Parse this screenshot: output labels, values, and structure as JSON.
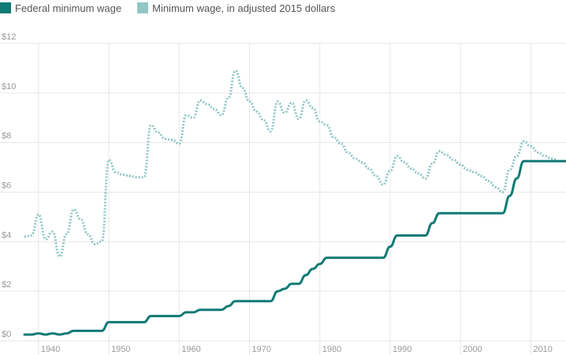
{
  "legend": [
    {
      "label": "Federal minimum wage",
      "color": "#127a75"
    },
    {
      "label": "Minimum wage, in adjusted 2015 dollars",
      "color": "#8fc7c3"
    }
  ],
  "chart_data": {
    "type": "line",
    "x_ticks": [
      "1940",
      "1950",
      "1960",
      "1970",
      "1980",
      "1990",
      "2000",
      "2010"
    ],
    "y_ticks": [
      "$0",
      "$2",
      "$4",
      "$6",
      "$8",
      "$10",
      "$12"
    ],
    "xlim": [
      1938,
      2015
    ],
    "ylim": [
      0,
      12
    ],
    "grid": true,
    "legend_position": "top-left",
    "series": [
      {
        "name": "Federal minimum wage",
        "style": "solid",
        "color": "#127a75",
        "x": [
          1938,
          1939,
          1940,
          1941,
          1942,
          1943,
          1944,
          1945,
          1946,
          1947,
          1948,
          1949,
          1950,
          1951,
          1952,
          1953,
          1954,
          1955,
          1956,
          1957,
          1958,
          1959,
          1960,
          1961,
          1962,
          1963,
          1964,
          1965,
          1966,
          1967,
          1968,
          1969,
          1970,
          1971,
          1972,
          1973,
          1974,
          1975,
          1976,
          1977,
          1978,
          1979,
          1980,
          1981,
          1982,
          1983,
          1984,
          1985,
          1986,
          1987,
          1988,
          1989,
          1990,
          1991,
          1992,
          1993,
          1994,
          1995,
          1996,
          1997,
          1998,
          1999,
          2000,
          2001,
          2002,
          2003,
          2004,
          2005,
          2006,
          2007,
          2008,
          2009,
          2010,
          2011,
          2012,
          2013,
          2014,
          2015
        ],
        "values": [
          0.25,
          0.25,
          0.3,
          0.25,
          0.3,
          0.25,
          0.3,
          0.4,
          0.4,
          0.4,
          0.4,
          0.4,
          0.75,
          0.75,
          0.75,
          0.75,
          0.75,
          0.75,
          1.0,
          1.0,
          1.0,
          1.0,
          1.0,
          1.15,
          1.15,
          1.25,
          1.25,
          1.25,
          1.25,
          1.4,
          1.6,
          1.6,
          1.6,
          1.6,
          1.6,
          1.6,
          2.0,
          2.1,
          2.3,
          2.3,
          2.65,
          2.9,
          3.1,
          3.35,
          3.35,
          3.35,
          3.35,
          3.35,
          3.35,
          3.35,
          3.35,
          3.35,
          3.8,
          4.25,
          4.25,
          4.25,
          4.25,
          4.25,
          4.75,
          5.15,
          5.15,
          5.15,
          5.15,
          5.15,
          5.15,
          5.15,
          5.15,
          5.15,
          5.15,
          5.85,
          6.55,
          7.25,
          7.25,
          7.25,
          7.25,
          7.25,
          7.25,
          7.25
        ]
      },
      {
        "name": "Minimum wage, in adjusted 2015 dollars",
        "style": "dotted",
        "color": "#8fc7c3",
        "x": [
          1938,
          1939,
          1940,
          1941,
          1942,
          1943,
          1944,
          1945,
          1946,
          1947,
          1948,
          1949,
          1950,
          1951,
          1952,
          1953,
          1954,
          1955,
          1956,
          1957,
          1958,
          1959,
          1960,
          1961,
          1962,
          1963,
          1964,
          1965,
          1966,
          1967,
          1968,
          1969,
          1970,
          1971,
          1972,
          1973,
          1974,
          1975,
          1976,
          1977,
          1978,
          1979,
          1980,
          1981,
          1982,
          1983,
          1984,
          1985,
          1986,
          1987,
          1988,
          1989,
          1990,
          1991,
          1992,
          1993,
          1994,
          1995,
          1996,
          1997,
          1998,
          1999,
          2000,
          2001,
          2002,
          2003,
          2004,
          2005,
          2006,
          2007,
          2008,
          2009,
          2010,
          2011,
          2012,
          2013,
          2014,
          2015
        ],
        "values": [
          4.2,
          4.25,
          5.1,
          4.1,
          4.4,
          3.4,
          4.3,
          5.3,
          4.9,
          4.3,
          3.9,
          4.0,
          7.3,
          6.8,
          6.7,
          6.65,
          6.6,
          6.6,
          8.7,
          8.4,
          8.15,
          8.1,
          7.95,
          9.1,
          9.0,
          9.7,
          9.55,
          9.35,
          9.1,
          9.8,
          10.9,
          10.2,
          9.65,
          9.25,
          8.9,
          8.45,
          9.65,
          9.2,
          9.6,
          8.95,
          9.7,
          9.4,
          8.85,
          8.7,
          8.2,
          7.95,
          7.6,
          7.35,
          7.2,
          6.95,
          6.65,
          6.3,
          6.85,
          7.45,
          7.2,
          6.95,
          6.75,
          6.55,
          7.15,
          7.65,
          7.5,
          7.3,
          7.1,
          6.9,
          6.8,
          6.65,
          6.45,
          6.2,
          6.0,
          6.9,
          7.45,
          8.05,
          7.85,
          7.6,
          7.45,
          7.35,
          7.25,
          7.25
        ]
      }
    ]
  }
}
